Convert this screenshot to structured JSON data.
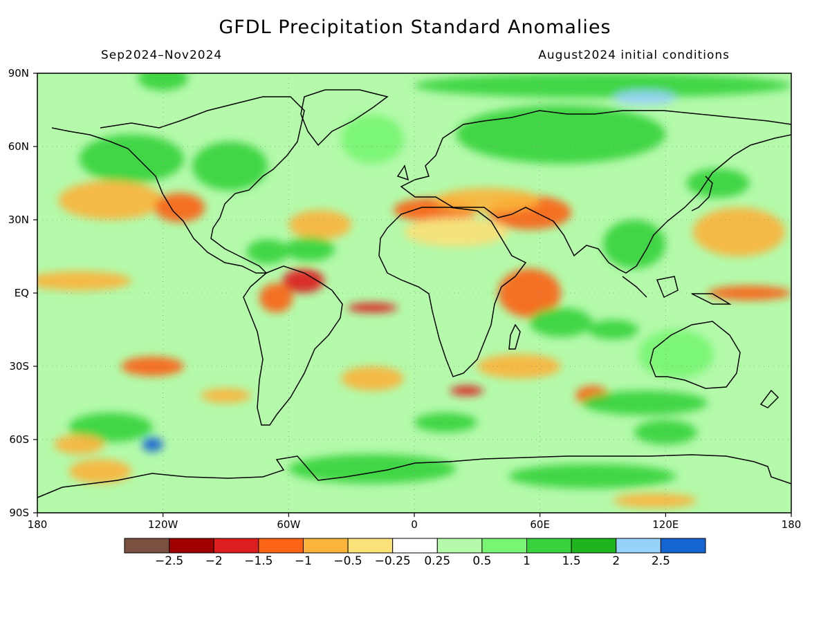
{
  "header": {
    "title": "GFDL Precipitation Standard Anomalies",
    "period": "Sep2024–Nov2024",
    "initial_conditions": "August2024 initial conditions"
  },
  "axes": {
    "lat_labels": [
      {
        "label": "90N",
        "lat": 90
      },
      {
        "label": "60N",
        "lat": 60
      },
      {
        "label": "30N",
        "lat": 30
      },
      {
        "label": "EQ",
        "lat": 0
      },
      {
        "label": "30S",
        "lat": -30
      },
      {
        "label": "60S",
        "lat": -60
      },
      {
        "label": "90S",
        "lat": -90
      }
    ],
    "lon_labels": [
      {
        "label": "180",
        "lon": -180
      },
      {
        "label": "120W",
        "lon": -120
      },
      {
        "label": "60W",
        "lon": -60
      },
      {
        "label": "0",
        "lon": 0
      },
      {
        "label": "60E",
        "lon": 60
      },
      {
        "label": "120E",
        "lon": 120
      },
      {
        "label": "180",
        "lon": 180
      }
    ]
  },
  "colorbar": {
    "colors": [
      "#7a5040",
      "#a00000",
      "#dc1e1e",
      "#fa6414",
      "#fab43c",
      "#fae178",
      "#ffffff",
      "#b4faaa",
      "#78f573",
      "#37d23c",
      "#1eb41e",
      "#96d2fa",
      "#1464d2"
    ],
    "labels": [
      "-2.5",
      "-2",
      "-1.5",
      "-1",
      "-0.5",
      "-0.25",
      "0.25",
      "0.5",
      "1",
      "1.5",
      "2",
      "2.5"
    ]
  },
  "anomaly_regions": [
    {
      "lat": 88,
      "lon": -120,
      "w": 12,
      "h": 5,
      "value": 1.2
    },
    {
      "lat": 85,
      "lon": 90,
      "w": 90,
      "h": 5,
      "value": 1.3
    },
    {
      "lat": 80,
      "lon": 110,
      "w": 15,
      "h": 3,
      "value": 2.2
    },
    {
      "lat": 65,
      "lon": 70,
      "w": 50,
      "h": 12,
      "value": 1.2
    },
    {
      "lat": 63,
      "lon": -20,
      "w": 15,
      "h": 10,
      "value": 0.6
    },
    {
      "lat": 55,
      "lon": -135,
      "w": 25,
      "h": 10,
      "value": 1.2
    },
    {
      "lat": 52,
      "lon": -88,
      "w": 18,
      "h": 10,
      "value": 1.0
    },
    {
      "lat": 38,
      "lon": -145,
      "w": 25,
      "h": 8,
      "value": -0.7
    },
    {
      "lat": 35,
      "lon": -112,
      "w": 12,
      "h": 6,
      "value": -1.2
    },
    {
      "lat": 28,
      "lon": -45,
      "w": 15,
      "h": 6,
      "value": -0.7
    },
    {
      "lat": 18,
      "lon": -50,
      "w": 12,
      "h": 5,
      "value": 1.3
    },
    {
      "lat": 17,
      "lon": -70,
      "w": 10,
      "h": 5,
      "value": 1.2
    },
    {
      "lat": 34,
      "lon": 10,
      "w": 20,
      "h": 5,
      "value": -1.2
    },
    {
      "lat": 33,
      "lon": 55,
      "w": 20,
      "h": 7,
      "value": -1.3
    },
    {
      "lat": 38,
      "lon": 35,
      "w": 25,
      "h": 5,
      "value": -0.8
    },
    {
      "lat": 25,
      "lon": 20,
      "w": 25,
      "h": 6,
      "value": -0.4
    },
    {
      "lat": 20,
      "lon": 105,
      "w": 15,
      "h": 10,
      "value": 1.2
    },
    {
      "lat": 25,
      "lon": 155,
      "w": 22,
      "h": 10,
      "value": -0.8
    },
    {
      "lat": 45,
      "lon": 145,
      "w": 15,
      "h": 6,
      "value": 1.0
    },
    {
      "lat": 5,
      "lon": -160,
      "w": 25,
      "h": 4,
      "value": -0.7
    },
    {
      "lat": 5,
      "lon": -53,
      "w": 10,
      "h": 5,
      "value": -1.7
    },
    {
      "lat": -2,
      "lon": -66,
      "w": 8,
      "h": 6,
      "value": -1.4
    },
    {
      "lat": -6,
      "lon": -20,
      "w": 12,
      "h": 2,
      "value": -1.8
    },
    {
      "lat": 0,
      "lon": 55,
      "w": 15,
      "h": 10,
      "value": -1.1
    },
    {
      "lat": 0,
      "lon": 160,
      "w": 20,
      "h": 3,
      "value": -1.1
    },
    {
      "lat": -12,
      "lon": 70,
      "w": 15,
      "h": 6,
      "value": 1.2
    },
    {
      "lat": -15,
      "lon": 95,
      "w": 12,
      "h": 4,
      "value": 1.3
    },
    {
      "lat": -30,
      "lon": -125,
      "w": 15,
      "h": 4,
      "value": -1.1
    },
    {
      "lat": -42,
      "lon": -90,
      "w": 12,
      "h": 3,
      "value": -1.0
    },
    {
      "lat": -35,
      "lon": -20,
      "w": 15,
      "h": 5,
      "value": -0.6
    },
    {
      "lat": -30,
      "lon": 50,
      "w": 20,
      "h": 5,
      "value": -0.8
    },
    {
      "lat": -40,
      "lon": 25,
      "w": 8,
      "h": 2,
      "value": -1.6
    },
    {
      "lat": -42,
      "lon": 85,
      "w": 8,
      "h": 4,
      "value": -1.2
    },
    {
      "lat": -25,
      "lon": 125,
      "w": 18,
      "h": 10,
      "value": 0.8
    },
    {
      "lat": -45,
      "lon": 110,
      "w": 30,
      "h": 5,
      "value": 1.0
    },
    {
      "lat": -55,
      "lon": -145,
      "w": 20,
      "h": 6,
      "value": 1.2
    },
    {
      "lat": -62,
      "lon": -125,
      "w": 5,
      "h": 3,
      "value": 2.6
    },
    {
      "lat": -62,
      "lon": -160,
      "w": 12,
      "h": 4,
      "value": -0.9
    },
    {
      "lat": -53,
      "lon": 15,
      "w": 15,
      "h": 4,
      "value": 1.1
    },
    {
      "lat": -72,
      "lon": -20,
      "w": 40,
      "h": 6,
      "value": 1.2
    },
    {
      "lat": -75,
      "lon": 85,
      "w": 40,
      "h": 5,
      "value": 1.2
    },
    {
      "lat": -85,
      "lon": 115,
      "w": 20,
      "h": 3,
      "value": -0.7
    },
    {
      "lat": -73,
      "lon": -150,
      "w": 15,
      "h": 5,
      "value": -0.7
    },
    {
      "lat": -57,
      "lon": 120,
      "w": 15,
      "h": 5,
      "value": 1.0
    }
  ]
}
